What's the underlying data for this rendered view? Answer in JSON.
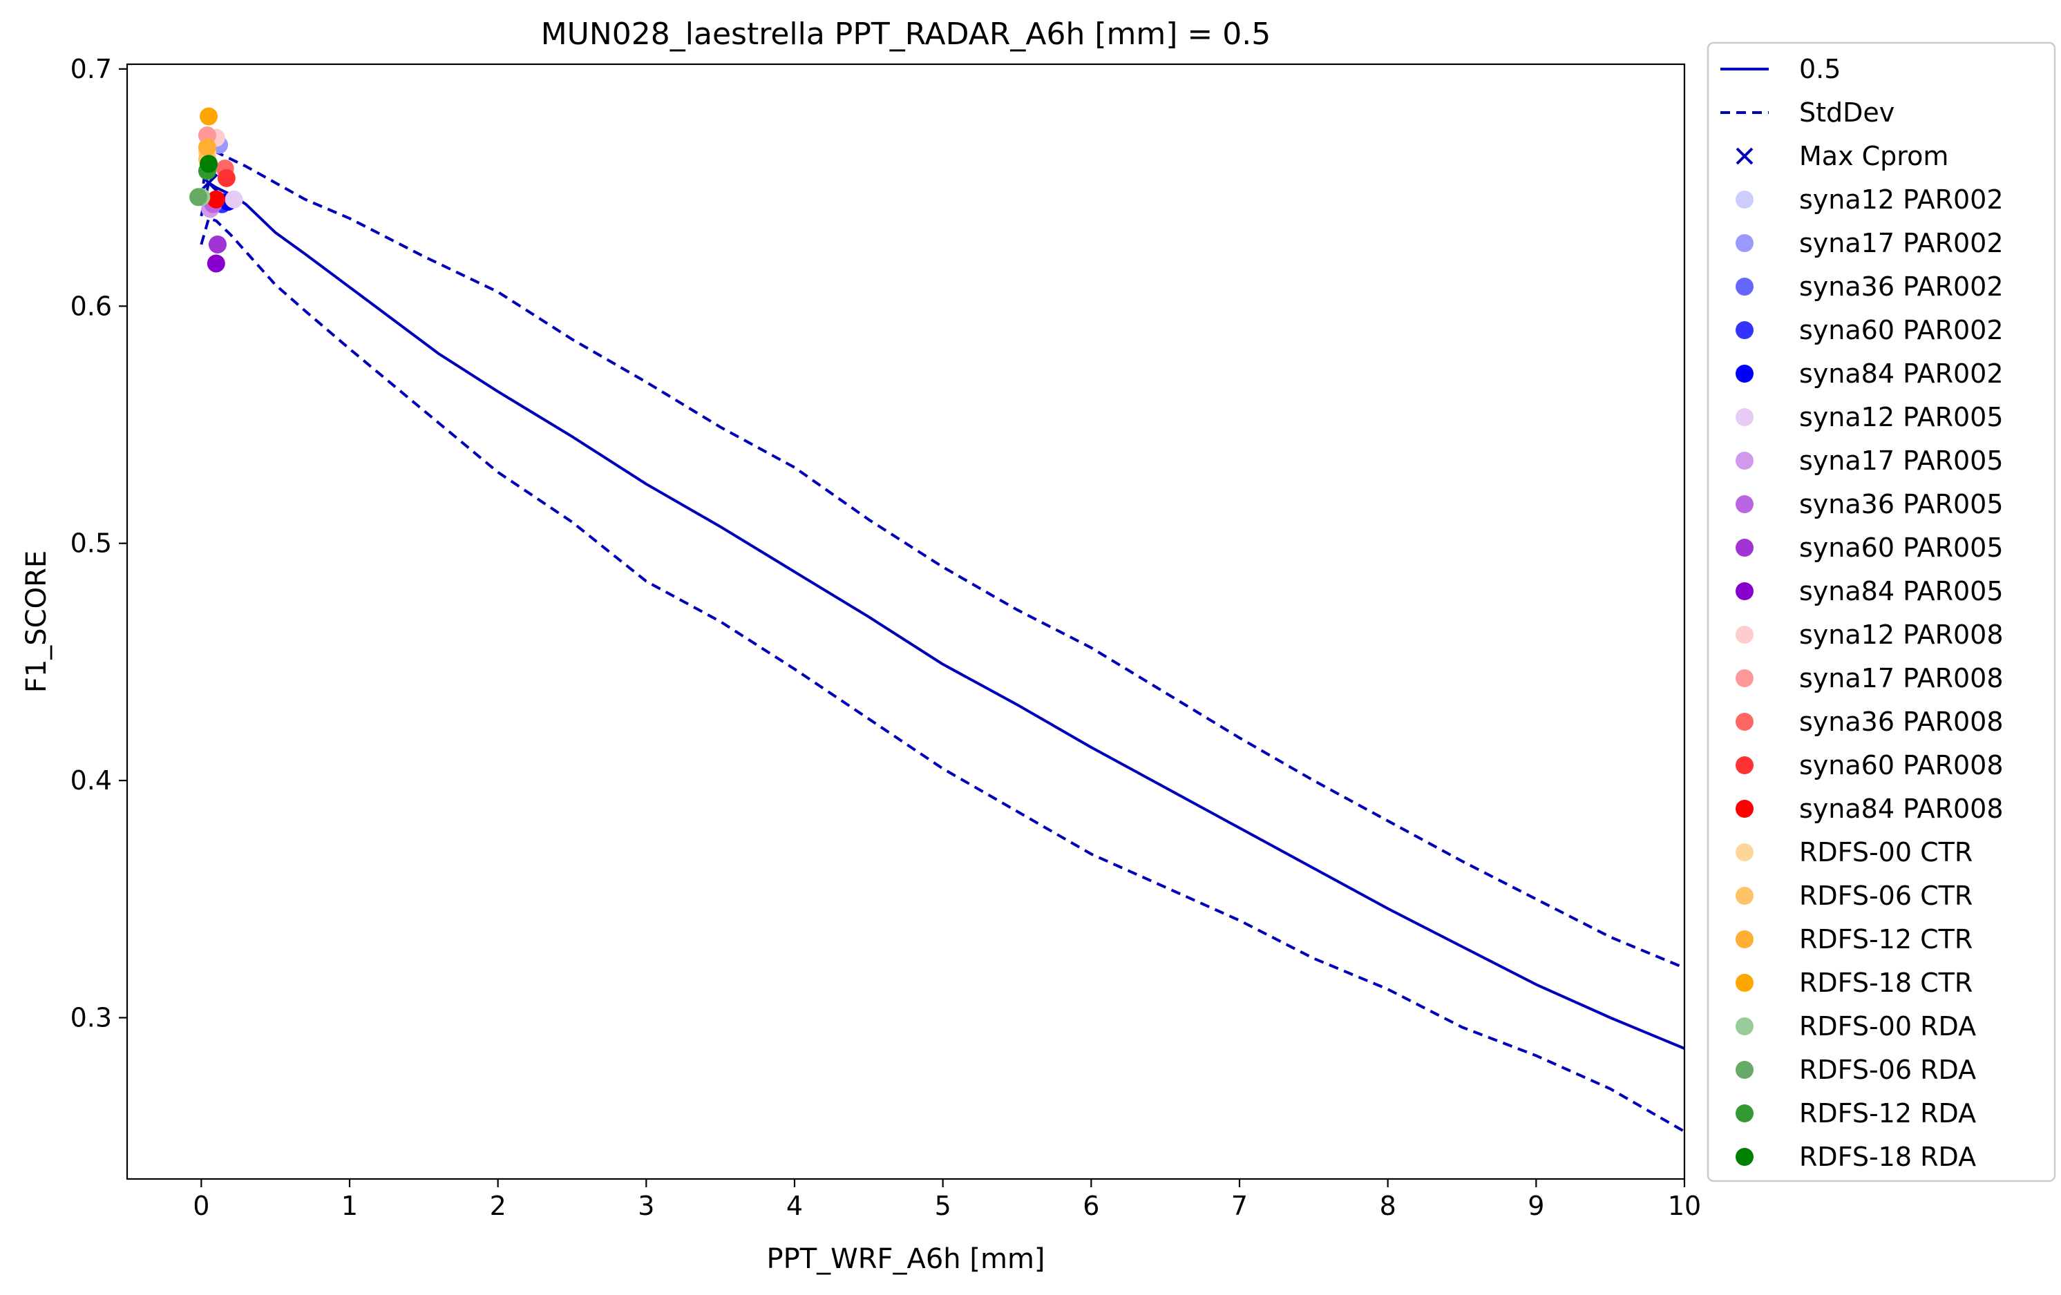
{
  "chart_data": {
    "type": "line",
    "title": "MUN028_laestrella    PPT_RADAR_A6h [mm] = 0.5",
    "xlabel": "PPT_WRF_A6h [mm]",
    "ylabel": "F1_SCORE",
    "xlim": [
      -0.5,
      10
    ],
    "ylim": [
      0.232,
      0.702
    ],
    "xticks": [
      0,
      1,
      2,
      3,
      4,
      5,
      6,
      7,
      8,
      9,
      10
    ],
    "xtick_labels": [
      "0",
      "1",
      "2",
      "3",
      "4",
      "5",
      "6",
      "7",
      "8",
      "9",
      "10"
    ],
    "yticks": [
      0.3,
      0.4,
      0.5,
      0.6,
      0.7
    ],
    "ytick_labels": [
      "0.3",
      "0.4",
      "0.5",
      "0.6",
      "0.7"
    ],
    "grid": false,
    "legend_position": "outside-right",
    "series": [
      {
        "name": "0.5",
        "style": "solid",
        "color": "#0000bb",
        "x": [
          0,
          0.05,
          0.1,
          0.2,
          0.3,
          0.4,
          0.5,
          0.7,
          1.0,
          1.3,
          1.6,
          2.0,
          2.5,
          3.0,
          3.5,
          4.0,
          4.5,
          5.0,
          5.5,
          6.0,
          6.5,
          7.0,
          7.5,
          8.0,
          8.5,
          9.0,
          9.5,
          10.0
        ],
        "y": [
          0.638,
          0.652,
          0.65,
          0.647,
          0.643,
          0.637,
          0.631,
          0.622,
          0.608,
          0.594,
          0.58,
          0.564,
          0.545,
          0.525,
          0.507,
          0.488,
          0.469,
          0.449,
          0.432,
          0.414,
          0.397,
          0.38,
          0.363,
          0.346,
          0.33,
          0.314,
          0.3,
          0.287
        ]
      },
      {
        "name": "StdDev",
        "style": "dashed",
        "color": "#0000bb",
        "x": [
          0,
          0.05,
          0.1,
          0.2,
          0.3,
          0.5,
          0.7,
          1.0,
          1.5,
          2.0,
          2.5,
          3.0,
          3.5,
          4.0,
          4.5,
          5.0,
          5.5,
          6.0,
          6.5,
          7.0,
          7.5,
          8.0,
          8.5,
          9.0,
          9.5,
          10.0
        ],
        "y": [
          0.645,
          0.668,
          0.665,
          0.662,
          0.659,
          0.652,
          0.645,
          0.637,
          0.621,
          0.606,
          0.586,
          0.568,
          0.549,
          0.532,
          0.51,
          0.49,
          0.472,
          0.456,
          0.437,
          0.418,
          0.4,
          0.383,
          0.366,
          0.35,
          0.334,
          0.321
        ]
      },
      {
        "name": "",
        "style": "dashed",
        "color": "#0000bb",
        "x": [
          0,
          0.05,
          0.1,
          0.2,
          0.3,
          0.5,
          0.7,
          1.0,
          1.5,
          2.0,
          2.5,
          3.0,
          3.5,
          4.0,
          4.5,
          5.0,
          5.5,
          6.0,
          6.5,
          7.0,
          7.5,
          8.0,
          8.5,
          9.0,
          9.5,
          10.0
        ],
        "y": [
          0.626,
          0.637,
          0.636,
          0.63,
          0.623,
          0.609,
          0.598,
          0.582,
          0.556,
          0.53,
          0.509,
          0.484,
          0.467,
          0.447,
          0.426,
          0.405,
          0.387,
          0.369,
          0.355,
          0.341,
          0.325,
          0.312,
          0.296,
          0.284,
          0.27,
          0.252
        ]
      }
    ],
    "markers": [
      {
        "name": "Max Cprom",
        "marker": "x",
        "color": "#0000bb",
        "x": 0.05,
        "y": 0.652
      },
      {
        "name": "syna12 PAR002",
        "marker": "o",
        "color": "#ccccff",
        "x": 0.1,
        "y": 0.644
      },
      {
        "name": "syna17 PAR002",
        "marker": "o",
        "color": "#9999ff",
        "x": 0.12,
        "y": 0.668
      },
      {
        "name": "syna36 PAR002",
        "marker": "o",
        "color": "#6666ff",
        "x": 0.16,
        "y": 0.644
      },
      {
        "name": "syna60 PAR002",
        "marker": "o",
        "color": "#3333ff",
        "x": 0.14,
        "y": 0.643
      },
      {
        "name": "syna84 PAR002",
        "marker": "o",
        "color": "#0000ff",
        "x": 0.18,
        "y": 0.644
      },
      {
        "name": "syna12 PAR005",
        "marker": "o",
        "color": "#e6ccf5",
        "x": 0.22,
        "y": 0.645
      },
      {
        "name": "syna17 PAR005",
        "marker": "o",
        "color": "#d199eb",
        "x": 0.06,
        "y": 0.641
      },
      {
        "name": "syna36 PAR005",
        "marker": "o",
        "color": "#bb66e0",
        "x": 0.08,
        "y": 0.643
      },
      {
        "name": "syna60 PAR005",
        "marker": "o",
        "color": "#a233d4",
        "x": 0.11,
        "y": 0.626
      },
      {
        "name": "syna84 PAR005",
        "marker": "o",
        "color": "#8800cc",
        "x": 0.1,
        "y": 0.618
      },
      {
        "name": "syna12 PAR008",
        "marker": "o",
        "color": "#ffcccc",
        "x": 0.1,
        "y": 0.671
      },
      {
        "name": "syna17 PAR008",
        "marker": "o",
        "color": "#ff9999",
        "x": 0.04,
        "y": 0.672
      },
      {
        "name": "syna36 PAR008",
        "marker": "o",
        "color": "#ff6666",
        "x": 0.16,
        "y": 0.658
      },
      {
        "name": "syna60 PAR008",
        "marker": "o",
        "color": "#ff3333",
        "x": 0.17,
        "y": 0.654
      },
      {
        "name": "syna84 PAR008",
        "marker": "o",
        "color": "#ff0000",
        "x": 0.1,
        "y": 0.645
      },
      {
        "name": "RDFS-00 CTR",
        "marker": "o",
        "color": "#ffd699",
        "x": 0.04,
        "y": 0.665
      },
      {
        "name": "RDFS-06 CTR",
        "marker": "o",
        "color": "#ffc266",
        "x": 0.04,
        "y": 0.662
      },
      {
        "name": "RDFS-12 CTR",
        "marker": "o",
        "color": "#ffad33",
        "x": 0.04,
        "y": 0.667
      },
      {
        "name": "RDFS-18 CTR",
        "marker": "o",
        "color": "#ffa500",
        "x": 0.05,
        "y": 0.68
      },
      {
        "name": "RDFS-00 RDA",
        "marker": "o",
        "color": "#99cc99",
        "x": 0.0,
        "y": 0.646
      },
      {
        "name": "RDFS-06 RDA",
        "marker": "o",
        "color": "#66aa66",
        "x": -0.02,
        "y": 0.646
      },
      {
        "name": "RDFS-12 RDA",
        "marker": "o",
        "color": "#339933",
        "x": 0.04,
        "y": 0.657
      },
      {
        "name": "RDFS-18 RDA",
        "marker": "o",
        "color": "#008000",
        "x": 0.05,
        "y": 0.66
      }
    ]
  }
}
